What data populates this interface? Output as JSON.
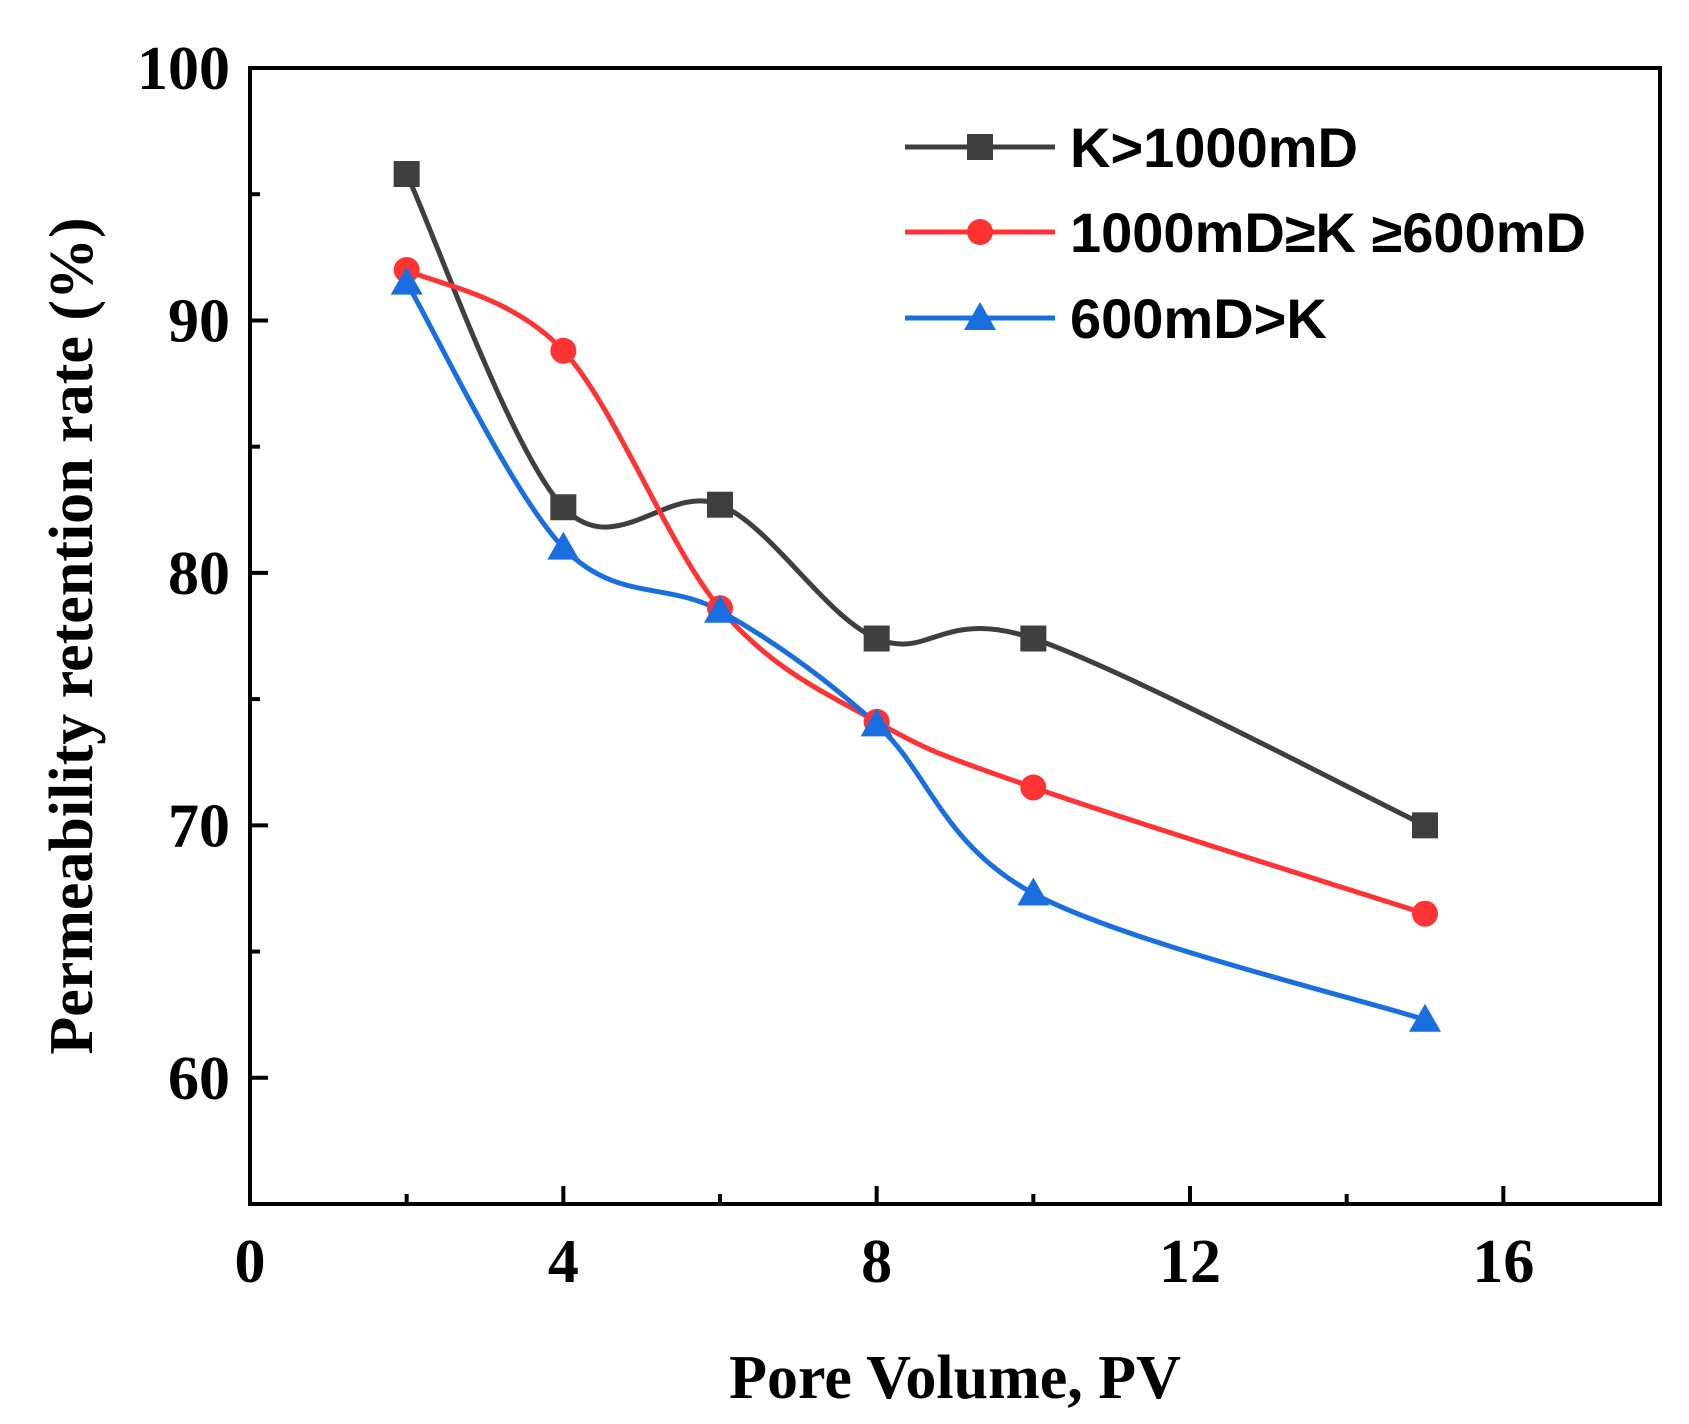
{
  "chart_data": {
    "type": "line",
    "title": "",
    "xlabel": "Pore Volume, PV",
    "ylabel": "Permeability retention rate (%)",
    "xlim": [
      0,
      18
    ],
    "ylim": [
      55,
      100
    ],
    "xticks": [
      0,
      4,
      8,
      12,
      16
    ],
    "yticks": [
      60,
      70,
      80,
      90,
      100
    ],
    "x_minor_ticks": [
      2,
      6,
      10,
      14
    ],
    "y_minor_ticks": [
      65,
      75,
      85,
      95
    ],
    "legend_position": "top-right",
    "grid": false,
    "series": [
      {
        "name": "K>1000mD",
        "color": "#3f3f3f",
        "marker": "square",
        "x": [
          2,
          4,
          6,
          8,
          10,
          15
        ],
        "y": [
          95.8,
          82.6,
          82.7,
          77.4,
          77.4,
          70.0
        ]
      },
      {
        "name": "1000mD≥K ≥600mD",
        "color": "#ff3333",
        "marker": "circle",
        "x": [
          2,
          4,
          6,
          8,
          10,
          15
        ],
        "y": [
          92.0,
          88.8,
          78.6,
          74.1,
          71.5,
          66.5
        ]
      },
      {
        "name": "600mD>K",
        "color": "#1a6fe0",
        "marker": "triangle",
        "x": [
          2,
          4,
          6,
          8,
          10,
          15
        ],
        "y": [
          91.5,
          81.0,
          78.5,
          74.0,
          67.3,
          62.3
        ]
      }
    ]
  }
}
